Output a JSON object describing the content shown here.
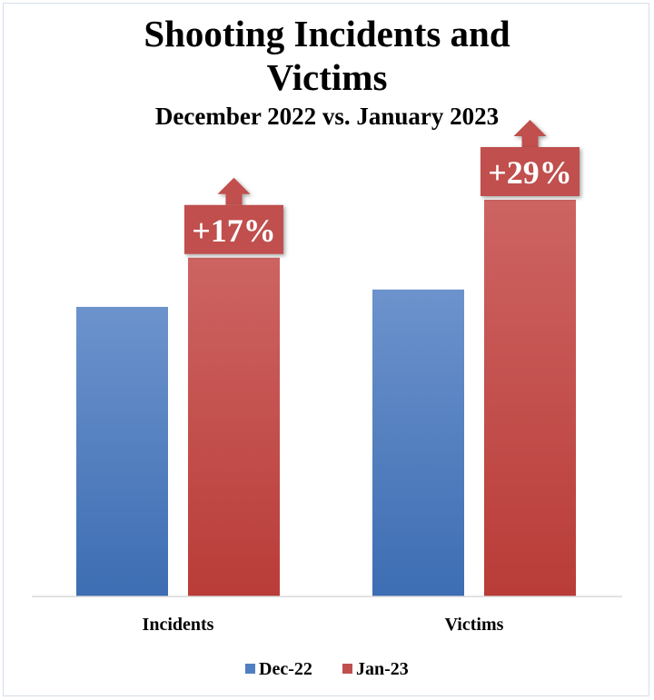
{
  "chart_data": {
    "type": "bar",
    "title": "Shooting Incidents and Victims",
    "title_lines": [
      "Shooting Incidents and",
      "Victims"
    ],
    "subtitle": "December 2022 vs. January 2023",
    "categories": [
      "Incidents",
      "Victims"
    ],
    "series": [
      {
        "name": "Dec-22",
        "values": [
          100,
          106
        ],
        "color": "#4f7fc0"
      },
      {
        "name": "Jan-23",
        "values": [
          117,
          137
        ],
        "color": "#c0504d"
      }
    ],
    "annotations": [
      "+17%",
      "+29%"
    ],
    "ylim": [
      0,
      150
    ],
    "grid": false,
    "legend_position": "bottom"
  }
}
